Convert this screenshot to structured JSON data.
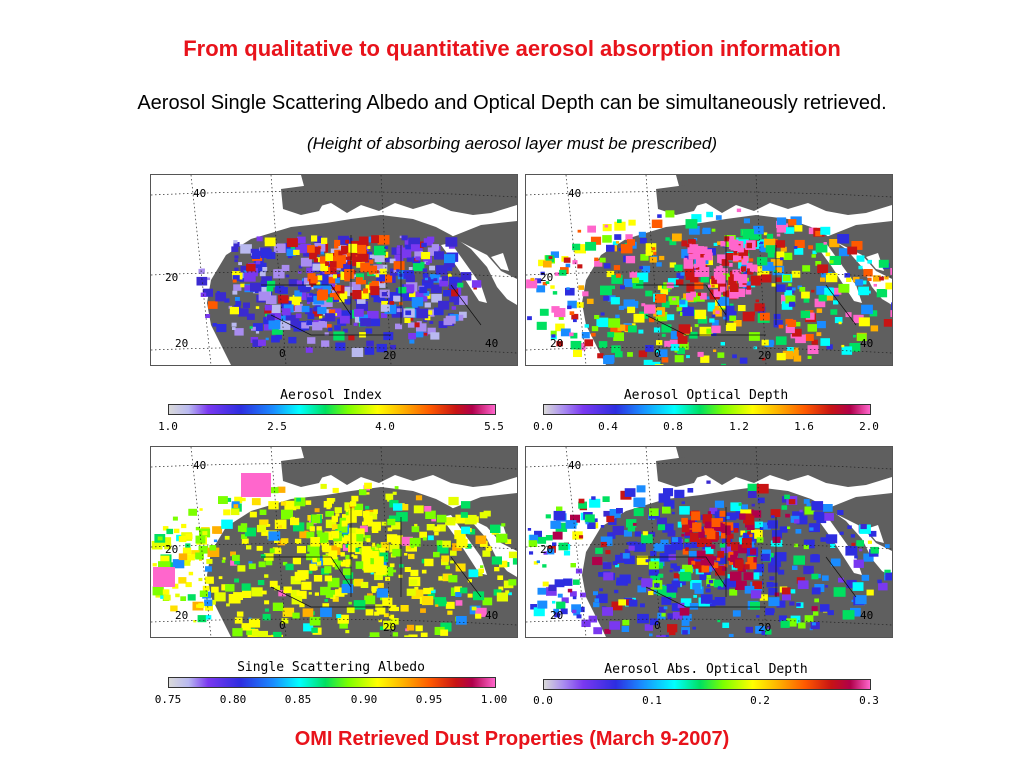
{
  "title": "From qualitative to quantitative aerosol absorption information",
  "subtitle": "Aerosol Single Scattering Albedo and Optical Depth can be simultaneously retrieved.",
  "note": "(Height of absorbing aerosol layer must be prescribed)",
  "caption": "OMI Retrieved Dust Properties (March 9-2007)",
  "panels": [
    {
      "colorbar_title": "Aerosol Index",
      "ticks": [
        "1.0",
        "2.5",
        "4.0",
        "5.5"
      ]
    },
    {
      "colorbar_title": "Aerosol Optical Depth",
      "ticks": [
        "0.0",
        "0.4",
        "0.8",
        "1.2",
        "1.6",
        "2.0"
      ]
    },
    {
      "colorbar_title": "Single Scattering Albedo",
      "ticks": [
        "0.75",
        "0.80",
        "0.85",
        "0.90",
        "0.95",
        "1.00"
      ]
    },
    {
      "colorbar_title": "Aerosol Abs. Optical Depth",
      "ticks": [
        "0.0",
        "0.1",
        "0.2",
        "0.3"
      ]
    }
  ],
  "map_labels": {
    "lat_40": "40",
    "lat_20": "20",
    "lat_m20": "20",
    "lon_0": "0",
    "lon_20": "20",
    "lon_40": "40"
  },
  "colors": {
    "title": "#e8131b",
    "land": "#5f5f5f",
    "ocean": "#ffffff"
  }
}
